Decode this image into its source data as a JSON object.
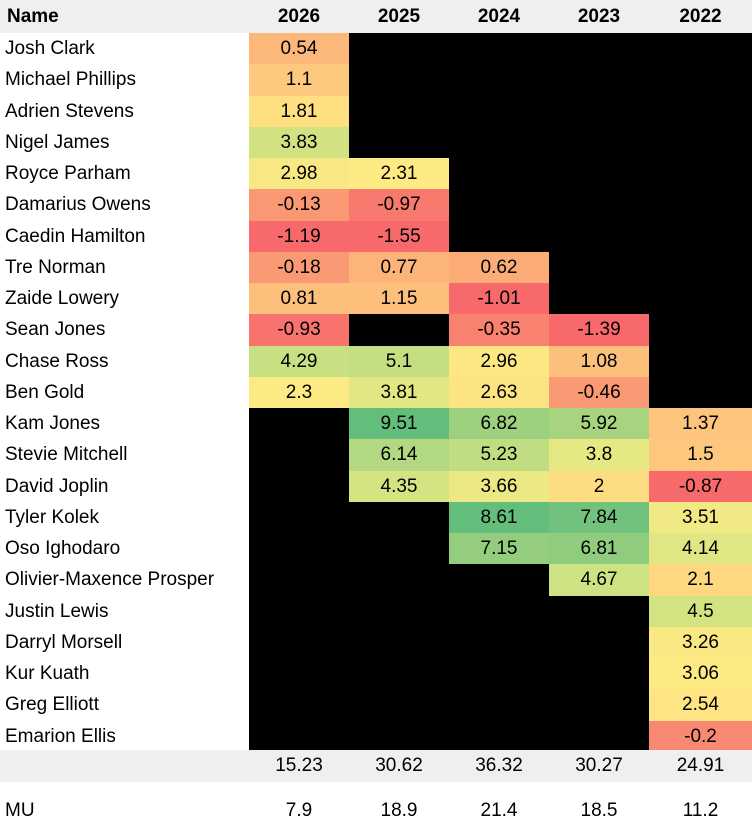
{
  "header": {
    "name": "Name",
    "years": [
      "2026",
      "2025",
      "2024",
      "2023",
      "2022"
    ]
  },
  "rows": [
    {
      "name": "Josh Clark",
      "cells": [
        {
          "v": "0.54",
          "c": "#fcb77a"
        },
        null,
        null,
        null,
        null
      ]
    },
    {
      "name": "Michael Phillips",
      "cells": [
        {
          "v": "1.1",
          "c": "#fdc97e"
        },
        null,
        null,
        null,
        null
      ]
    },
    {
      "name": "Adrien Stevens",
      "cells": [
        {
          "v": "1.81",
          "c": "#fee081"
        },
        null,
        null,
        null,
        null
      ]
    },
    {
      "name": "Nigel James",
      "cells": [
        {
          "v": "3.83",
          "c": "#d2e282"
        },
        null,
        null,
        null,
        null
      ]
    },
    {
      "name": "Royce Parham",
      "cells": [
        {
          "v": "2.98",
          "c": "#f7e883"
        },
        {
          "v": "2.31",
          "c": "#feea83"
        },
        null,
        null,
        null
      ]
    },
    {
      "name": "Damarius Owens",
      "cells": [
        {
          "v": "-0.13",
          "c": "#f99873"
        },
        {
          "v": "-0.97",
          "c": "#f8796e"
        },
        null,
        null,
        null
      ]
    },
    {
      "name": "Caedin Hamilton",
      "cells": [
        {
          "v": "-1.19",
          "c": "#f8696b"
        },
        {
          "v": "-1.55",
          "c": "#f8696b"
        },
        null,
        null,
        null
      ]
    },
    {
      "name": "Tre Norman",
      "cells": [
        {
          "v": "-0.18",
          "c": "#f99a74"
        },
        {
          "v": "0.77",
          "c": "#fcb479"
        },
        {
          "v": "0.62",
          "c": "#fbac77"
        },
        null,
        null
      ]
    },
    {
      "name": "Zaide Lowery",
      "cells": [
        {
          "v": "0.81",
          "c": "#fcc07c"
        },
        {
          "v": "1.15",
          "c": "#fcbf7c"
        },
        {
          "v": "-1.01",
          "c": "#f8696b"
        },
        null,
        null
      ]
    },
    {
      "name": "Sean Jones",
      "cells": [
        {
          "v": "-0.93",
          "c": "#f8736d"
        },
        null,
        {
          "v": "-0.35",
          "c": "#f9816f"
        },
        {
          "v": "-1.39",
          "c": "#f8696b"
        },
        null
      ]
    },
    {
      "name": "Chase Ross",
      "cells": [
        {
          "v": "4.29",
          "c": "#c7e082"
        },
        {
          "v": "5.1",
          "c": "#c3df82"
        },
        {
          "v": "2.96",
          "c": "#fde783"
        },
        {
          "v": "1.08",
          "c": "#fcc07c"
        },
        null
      ]
    },
    {
      "name": "Ben Gold",
      "cells": [
        {
          "v": "2.3",
          "c": "#feea83"
        },
        {
          "v": "3.81",
          "c": "#e3e783"
        },
        {
          "v": "2.63",
          "c": "#fde483"
        },
        {
          "v": "-0.46",
          "c": "#fa9a74"
        },
        null
      ]
    },
    {
      "name": "Kam Jones",
      "cells": [
        null,
        {
          "v": "9.51",
          "c": "#63be7b"
        },
        {
          "v": "6.82",
          "c": "#9dd07f"
        },
        {
          "v": "5.92",
          "c": "#a8d480"
        },
        {
          "v": "1.37",
          "c": "#fdc47d"
        }
      ]
    },
    {
      "name": "Stevie Mitchell",
      "cells": [
        null,
        {
          "v": "6.14",
          "c": "#b2d981"
        },
        {
          "v": "5.23",
          "c": "#bfdd81"
        },
        {
          "v": "3.8",
          "c": "#e5e883"
        },
        {
          "v": "1.5",
          "c": "#fdc77e"
        }
      ]
    },
    {
      "name": "David Joplin",
      "cells": [
        null,
        {
          "v": "4.35",
          "c": "#d4e482"
        },
        {
          "v": "3.66",
          "c": "#ece883"
        },
        {
          "v": "2",
          "c": "#fedc81"
        },
        {
          "v": "-0.87",
          "c": "#f8696b"
        }
      ]
    },
    {
      "name": "Tyler Kolek",
      "cells": [
        null,
        null,
        {
          "v": "8.61",
          "c": "#63be7b"
        },
        {
          "v": "7.84",
          "c": "#70c27c"
        },
        {
          "v": "3.51",
          "c": "#f1e984"
        }
      ]
    },
    {
      "name": "Oso Ighodaro",
      "cells": [
        null,
        null,
        {
          "v": "7.15",
          "c": "#94cd7e"
        },
        {
          "v": "6.81",
          "c": "#8fcc7e"
        },
        {
          "v": "4.14",
          "c": "#dfe683"
        }
      ]
    },
    {
      "name": "Olivier-Maxence Prosper",
      "cells": [
        null,
        null,
        null,
        {
          "v": "4.67",
          "c": "#cde282"
        },
        {
          "v": "2.1",
          "c": "#fed880"
        }
      ]
    },
    {
      "name": "Justin Lewis",
      "cells": [
        null,
        null,
        null,
        null,
        {
          "v": "4.5",
          "c": "#d2e382"
        }
      ]
    },
    {
      "name": "Darryl Morsell",
      "cells": [
        null,
        null,
        null,
        null,
        {
          "v": "3.26",
          "c": "#fae983"
        }
      ]
    },
    {
      "name": "Kur Kuath",
      "cells": [
        null,
        null,
        null,
        null,
        {
          "v": "3.06",
          "c": "#feea83"
        }
      ]
    },
    {
      "name": "Greg Elliott",
      "cells": [
        null,
        null,
        null,
        null,
        {
          "v": "2.54",
          "c": "#fee482"
        }
      ]
    },
    {
      "name": "Emarion Ellis",
      "cells": [
        null,
        null,
        null,
        null,
        {
          "v": "-0.2",
          "c": "#f98872"
        }
      ]
    }
  ],
  "totals": [
    "15.23",
    "30.62",
    "36.32",
    "30.27",
    "24.91"
  ],
  "mu": {
    "label": "MU",
    "values": [
      "7.9",
      "18.9",
      "21.4",
      "18.5",
      "11.2"
    ]
  },
  "colors": {
    "empty": "#000000",
    "header_bg": "#efefef",
    "name_bg": "#ffffff"
  }
}
